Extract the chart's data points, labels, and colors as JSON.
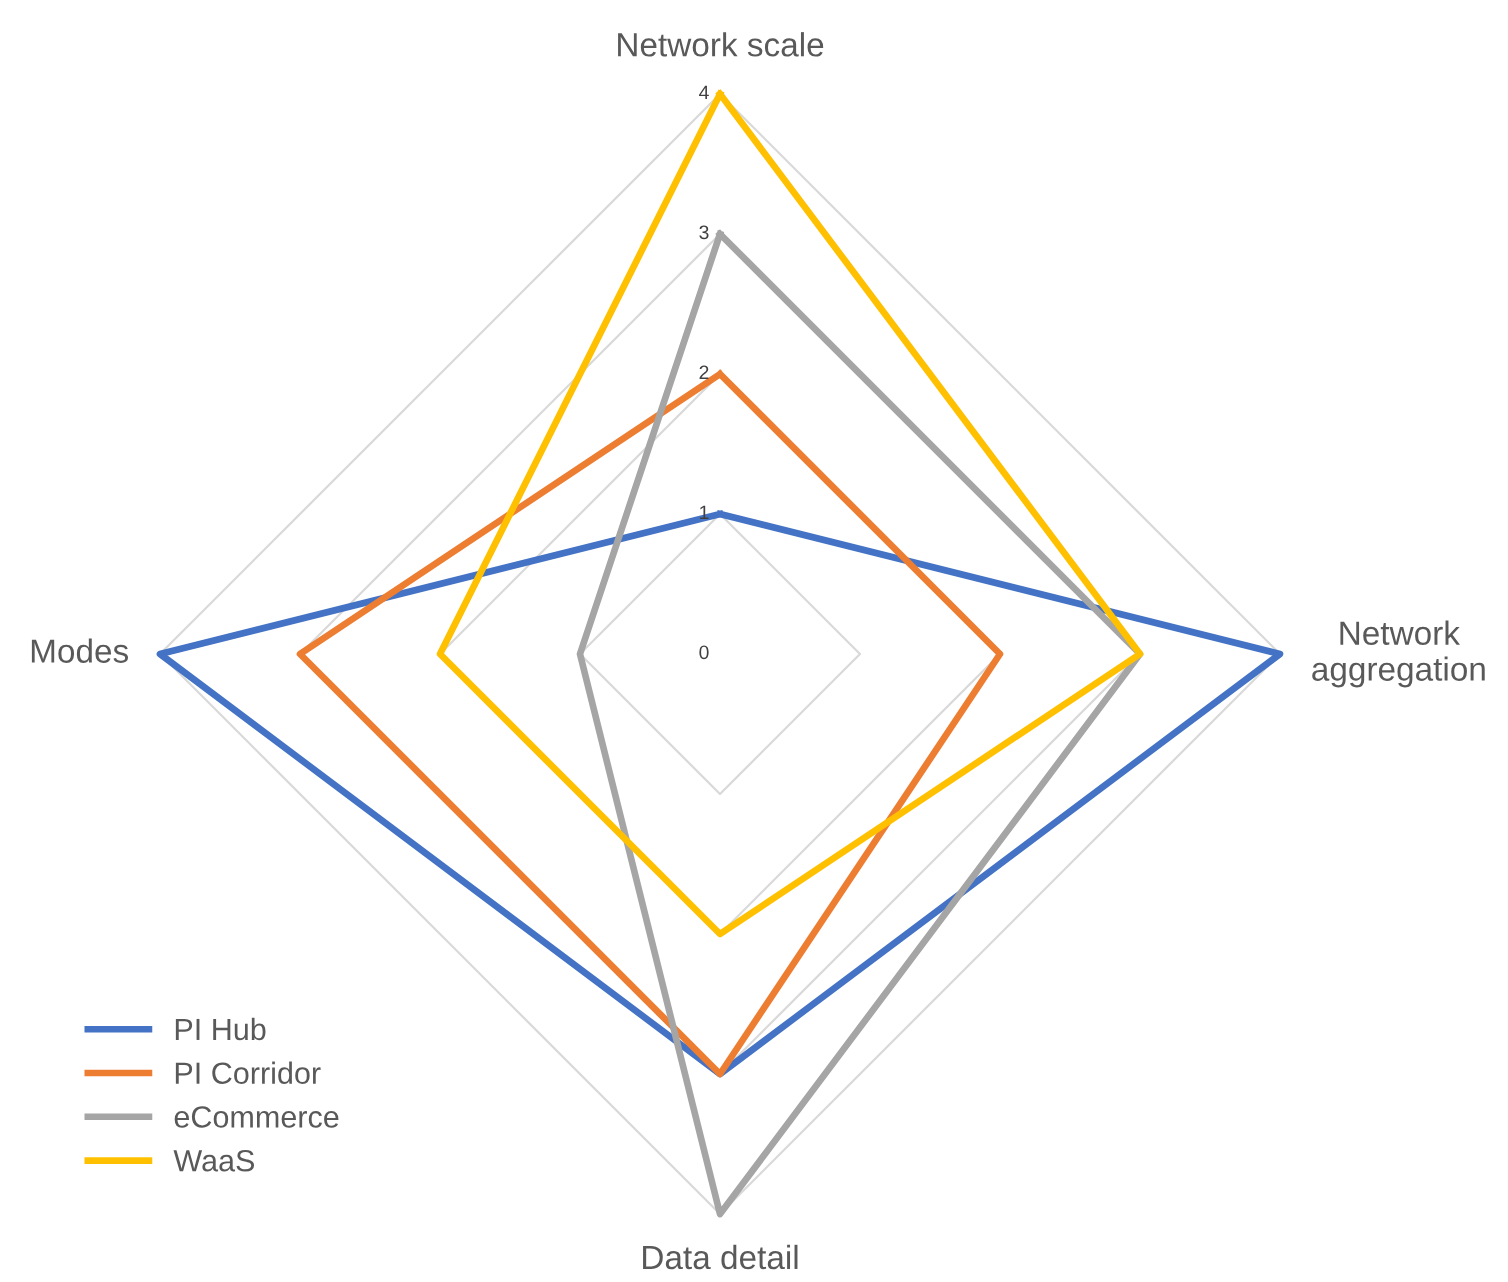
{
  "chart_data": {
    "type": "radar",
    "categories": [
      "Network scale",
      "Network\naggregation",
      "Data detail",
      "Modes"
    ],
    "ylim": [
      0,
      4
    ],
    "yticks": [
      0,
      1,
      2,
      3,
      4
    ],
    "grid": true,
    "legend": "bottom left",
    "series": [
      {
        "name": "PI Hub",
        "color": "#4472c4",
        "values": [
          1,
          4,
          3,
          4
        ]
      },
      {
        "name": "PI Corridor",
        "color": "#ed7d31",
        "values": [
          2,
          2,
          3,
          3
        ]
      },
      {
        "name": "eCommerce",
        "color": "#a5a5a5",
        "values": [
          3,
          3,
          4,
          1
        ]
      },
      {
        "name": "WaaS",
        "color": "#ffc000",
        "values": [
          4,
          3,
          2,
          2
        ]
      }
    ]
  }
}
